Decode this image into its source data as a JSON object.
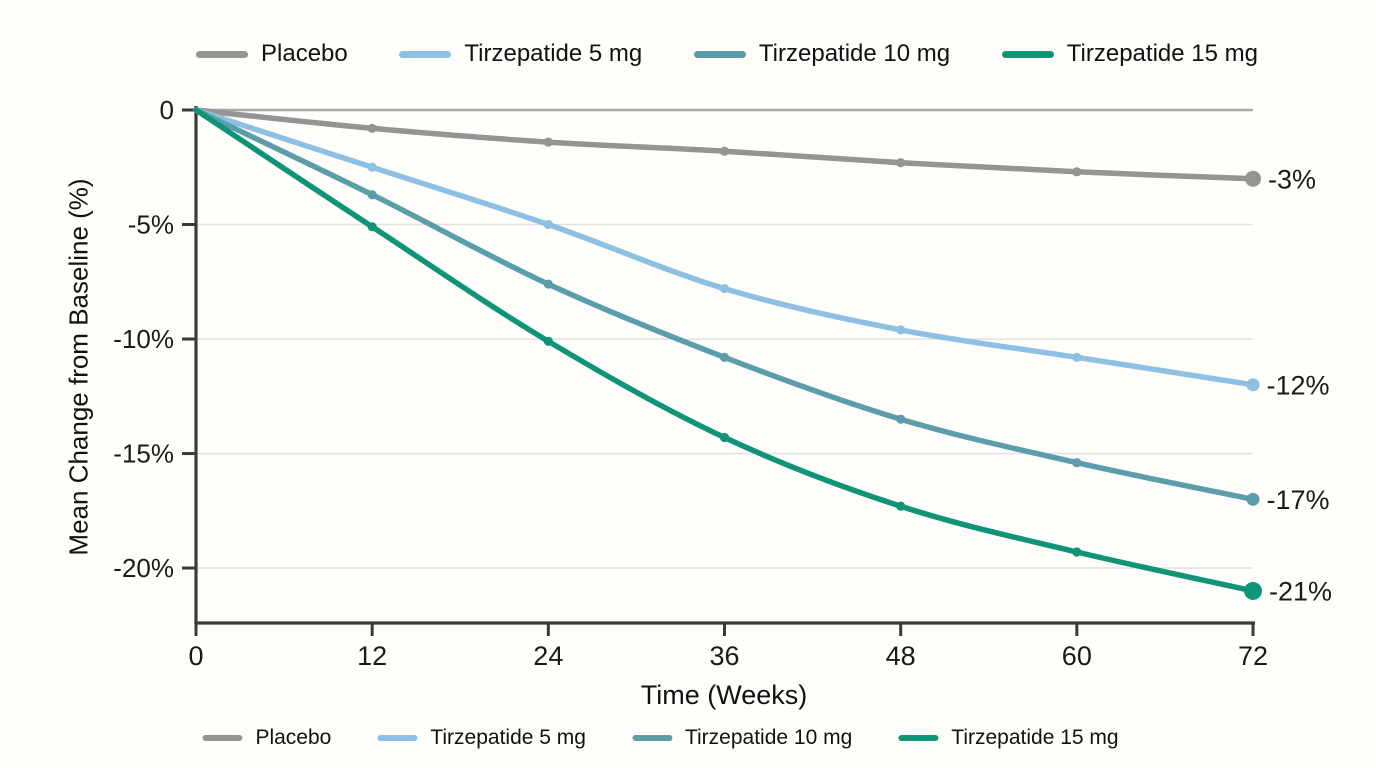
{
  "page": {
    "background": "#FFFEFB",
    "text_color": "#1a1a1a",
    "axis_color": "#3a3a3a",
    "gridline_color": "#e2e2e0",
    "zero_line_color": "#a8a8a8"
  },
  "chart_data": {
    "type": "line",
    "xlabel": "Time (Weeks)",
    "ylabel": "Mean Change from Baseline (%)",
    "x": [
      0,
      12,
      24,
      36,
      48,
      60,
      72
    ],
    "x_tick_labels": [
      "0",
      "12",
      "24",
      "36",
      "48",
      "60",
      "72"
    ],
    "y_ticks": [
      {
        "value": 0,
        "label": "0"
      },
      {
        "value": -5,
        "label": "-5%"
      },
      {
        "value": -10,
        "label": "-10%"
      },
      {
        "value": -15,
        "label": "-15%"
      },
      {
        "value": -20,
        "label": "-20%"
      }
    ],
    "xlim": [
      0,
      72
    ],
    "ylim": [
      0,
      -22.4
    ],
    "grid": "horizontal",
    "legend_position": "top and bottom",
    "series": [
      {
        "name": "Placebo",
        "color": "#949494",
        "values": [
          0,
          -0.8,
          -1.4,
          -1.8,
          -2.3,
          -2.7,
          -3
        ],
        "end_label": "-3%",
        "end_marker_radius": 8
      },
      {
        "name": "Tirzepatide 5 mg",
        "color": "#8DC0E2",
        "values": [
          0,
          -2.5,
          -5.0,
          -7.8,
          -9.6,
          -10.8,
          -12
        ],
        "end_label": "-12%",
        "end_marker_radius": 6.5
      },
      {
        "name": "Tirzepatide 10 mg",
        "color": "#5C9DAB",
        "values": [
          0,
          -3.7,
          -7.6,
          -10.8,
          -13.5,
          -15.4,
          -17
        ],
        "end_label": "-17%",
        "end_marker_radius": 6.5
      },
      {
        "name": "Tirzepatide 15 mg",
        "color": "#0F9478",
        "values": [
          0,
          -5.1,
          -10.1,
          -14.3,
          -17.3,
          -19.3,
          -21
        ],
        "end_label": "-21%",
        "end_marker_radius": 9
      }
    ]
  }
}
